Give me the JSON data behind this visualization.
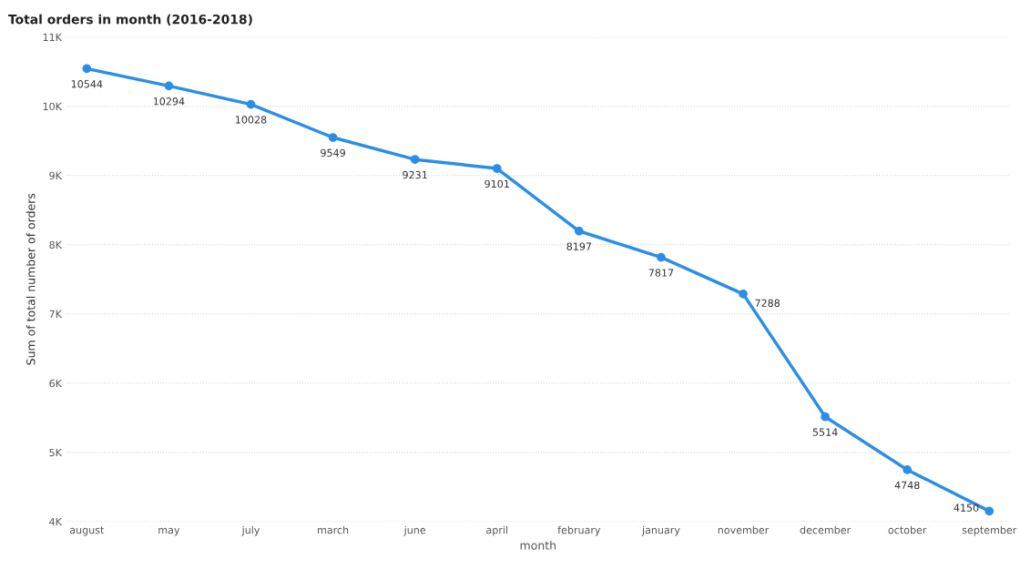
{
  "chart_data": {
    "type": "line",
    "title": "Total orders in month (2016-2018)",
    "xlabel": "month",
    "ylabel": "Sum of total number of orders",
    "categories": [
      "august",
      "may",
      "july",
      "march",
      "june",
      "april",
      "february",
      "january",
      "november",
      "december",
      "october",
      "september"
    ],
    "series": [
      {
        "color": "#2b8ee6",
        "values": [
          10544,
          10294,
          10028,
          9549,
          9231,
          9101,
          8197,
          7817,
          7288,
          5514,
          4748,
          4150
        ]
      }
    ],
    "ylim": [
      4000,
      11000
    ],
    "yticks": [
      {
        "value": 4000,
        "label": "4K"
      },
      {
        "value": 5000,
        "label": "5K"
      },
      {
        "value": 6000,
        "label": "6K"
      },
      {
        "value": 7000,
        "label": "7K"
      },
      {
        "value": 8000,
        "label": "8K"
      },
      {
        "value": 9000,
        "label": "9K"
      },
      {
        "value": 10000,
        "label": "10K"
      },
      {
        "value": 11000,
        "label": "11K"
      }
    ],
    "grid": "y",
    "marker": "circle",
    "line_style": "solid",
    "data_labels": true,
    "legend": false
  }
}
